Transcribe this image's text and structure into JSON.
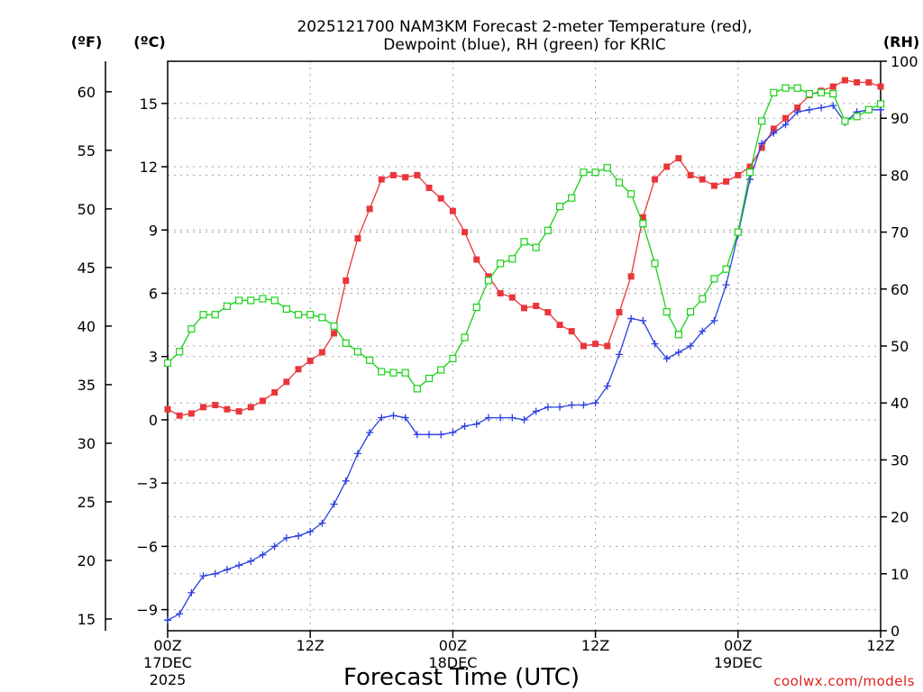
{
  "colors": {
    "temperature": "#e8363a",
    "dewpoint": "#2a3fe0",
    "rh": "#19d019",
    "credit": "#e0201f",
    "grid": "#a0a0a0"
  },
  "chart_data": {
    "type": "line",
    "title_line1": "2025121700 NAM3KM Forecast 2-meter Temperature (red),",
    "title_line2": "Dewpoint (blue), RH (green) for KRIC",
    "xlabel": "Forecast Time (UTC)",
    "credit": "coolwx.com/models",
    "unit_f": "(ºF)",
    "unit_c": "(ºC)",
    "unit_rh": "(RH)",
    "xlim": [
      0,
      60
    ],
    "ylim_c": [
      -10.0,
      17.0
    ],
    "ylim_rh": [
      0,
      100
    ],
    "x_ticks": [
      {
        "x": 0,
        "line1": "00Z",
        "line2": "17DEC",
        "line3": "2025"
      },
      {
        "x": 12,
        "line1": "12Z",
        "line2": "",
        "line3": ""
      },
      {
        "x": 24,
        "line1": "00Z",
        "line2": "18DEC",
        "line3": ""
      },
      {
        "x": 36,
        "line1": "12Z",
        "line2": "",
        "line3": ""
      },
      {
        "x": 48,
        "line1": "00Z",
        "line2": "19DEC",
        "line3": ""
      },
      {
        "x": 60,
        "line1": "12Z",
        "line2": "",
        "line3": ""
      }
    ],
    "y_ticks_c": [
      -9,
      -6,
      -3,
      0,
      3,
      6,
      9,
      12,
      15
    ],
    "y_ticks_f": [
      15,
      20,
      25,
      30,
      35,
      40,
      45,
      50,
      55,
      60
    ],
    "y_ticks_rh": [
      0,
      10,
      20,
      30,
      40,
      50,
      60,
      70,
      80,
      90,
      100
    ],
    "x": [
      0,
      1,
      2,
      3,
      4,
      5,
      6,
      7,
      8,
      9,
      10,
      11,
      12,
      13,
      14,
      15,
      16,
      17,
      18,
      19,
      20,
      21,
      22,
      23,
      24,
      25,
      26,
      27,
      28,
      29,
      30,
      31,
      32,
      33,
      34,
      35,
      36,
      37,
      38,
      39,
      40,
      41,
      42,
      43,
      44,
      45,
      46,
      47,
      48,
      49,
      50,
      51,
      52,
      53,
      54,
      55,
      56,
      57,
      58,
      59,
      60
    ],
    "series": [
      {
        "name": "Temperature",
        "unit": "C",
        "marker": "filled-square",
        "values": [
          0.5,
          0.2,
          0.3,
          0.6,
          0.7,
          0.5,
          0.4,
          0.6,
          0.9,
          1.3,
          1.8,
          2.4,
          2.8,
          3.2,
          4.1,
          6.6,
          8.6,
          10.0,
          11.4,
          11.6,
          11.5,
          11.6,
          11.0,
          10.5,
          9.9,
          8.9,
          7.6,
          6.8,
          6.0,
          5.8,
          5.3,
          5.4,
          5.1,
          4.5,
          4.2,
          3.5,
          3.6,
          3.5,
          5.1,
          6.8,
          9.6,
          11.4,
          12.0,
          12.4,
          11.6,
          11.4,
          11.1,
          11.3,
          11.6,
          12.0,
          12.9,
          13.8,
          14.3,
          14.8,
          15.4,
          15.6,
          15.8,
          16.1,
          16.0,
          16.0,
          15.8
        ]
      },
      {
        "name": "Dewpoint",
        "unit": "C",
        "marker": "plus",
        "values": [
          -9.5,
          -9.2,
          -8.2,
          -7.4,
          -7.3,
          -7.1,
          -6.9,
          -6.7,
          -6.4,
          -6.0,
          -5.6,
          -5.5,
          -5.3,
          -4.9,
          -4.0,
          -2.9,
          -1.6,
          -0.6,
          0.1,
          0.2,
          0.1,
          -0.7,
          -0.7,
          -0.7,
          -0.6,
          -0.3,
          -0.2,
          0.1,
          0.1,
          0.1,
          0.0,
          0.4,
          0.6,
          0.6,
          0.7,
          0.7,
          0.8,
          1.6,
          3.1,
          4.8,
          4.7,
          3.6,
          2.9,
          3.2,
          3.5,
          4.2,
          4.7,
          6.4,
          8.8,
          11.4,
          13.1,
          13.6,
          14.0,
          14.6,
          14.7,
          14.8,
          14.9,
          14.1,
          14.6,
          14.7,
          14.7
        ]
      },
      {
        "name": "RH",
        "unit": "%",
        "marker": "open-square",
        "values": [
          47,
          49,
          53,
          55.5,
          55.5,
          57,
          58,
          58,
          58.3,
          58,
          56.5,
          55.5,
          55.5,
          55,
          53.5,
          50.5,
          49,
          47.5,
          45.5,
          45.3,
          45.3,
          42.5,
          44.3,
          45.8,
          47.8,
          51.5,
          56.8,
          61.5,
          64.5,
          65.3,
          68.3,
          67.3,
          70.3,
          74.5,
          76,
          80.5,
          80.5,
          81.3,
          78.7,
          76.7,
          71.5,
          64.5,
          56,
          52,
          56,
          58.3,
          61.8,
          63.5,
          70,
          80.5,
          89.5,
          94.5,
          95.3,
          95.3,
          94.3,
          94.5,
          94.3,
          89.5,
          90.3,
          91.5,
          92.5
        ]
      }
    ]
  }
}
